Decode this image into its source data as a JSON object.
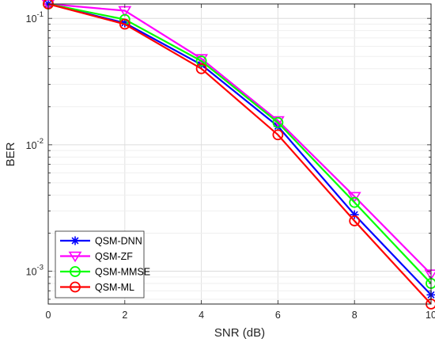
{
  "chart_data": {
    "type": "line",
    "xlabel": "SNR (dB)",
    "ylabel": "BER",
    "xlim": [
      0,
      10
    ],
    "ylim": [
      0.00055,
      0.13
    ],
    "yscale": "log",
    "grid": true,
    "legend_position": "bottom-left",
    "x": [
      0,
      2,
      4,
      6,
      8,
      10
    ],
    "x_ticks": [
      "0",
      "2",
      "4",
      "6",
      "8",
      "10"
    ],
    "y_ticks": [
      {
        "value": 0.1,
        "base": "10",
        "exp": "-1"
      },
      {
        "value": 0.01,
        "base": "10",
        "exp": "-2"
      },
      {
        "value": 0.001,
        "base": "10",
        "exp": "-3"
      }
    ],
    "series": [
      {
        "name": "QSM-DNN",
        "color": "#0000ff",
        "marker": "asterisk",
        "values": [
          0.13,
          0.092,
          0.043,
          0.014,
          0.0028,
          0.00065
        ]
      },
      {
        "name": "QSM-ZF",
        "color": "#ff00ff",
        "marker": "triangle-down",
        "values": [
          0.13,
          0.115,
          0.048,
          0.0155,
          0.0039,
          0.00095
        ]
      },
      {
        "name": "QSM-MMSE",
        "color": "#00ff00",
        "marker": "circle",
        "values": [
          0.13,
          0.098,
          0.046,
          0.015,
          0.0035,
          0.0008
        ]
      },
      {
        "name": "QSM-ML",
        "color": "#ff0000",
        "marker": "circle",
        "values": [
          0.13,
          0.09,
          0.04,
          0.012,
          0.0025,
          0.00055
        ]
      }
    ]
  }
}
